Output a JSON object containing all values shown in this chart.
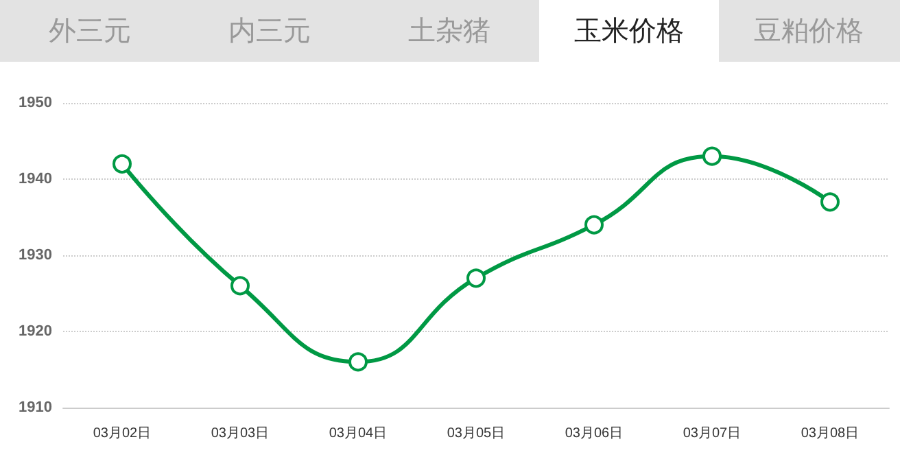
{
  "chart_data": {
    "type": "line",
    "annotations": [
      "外三元",
      "内三元",
      "土杂猪",
      "玉米价格",
      "豆粕价格"
    ],
    "categories": [
      "03月02日",
      "03月03日",
      "03月04日",
      "03月05日",
      "03月06日",
      "03月07日",
      "03月08日"
    ],
    "series": [
      {
        "color": "#009944",
        "values": [
          1942,
          1926,
          1916,
          1927,
          1934,
          1943,
          1937
        ]
      }
    ],
    "ylim": [
      1910,
      1950
    ],
    "yticks": [
      1910,
      1920,
      1930,
      1940,
      1950
    ],
    "grid": "y",
    "marker": "circle",
    "line_style": "solid"
  }
}
